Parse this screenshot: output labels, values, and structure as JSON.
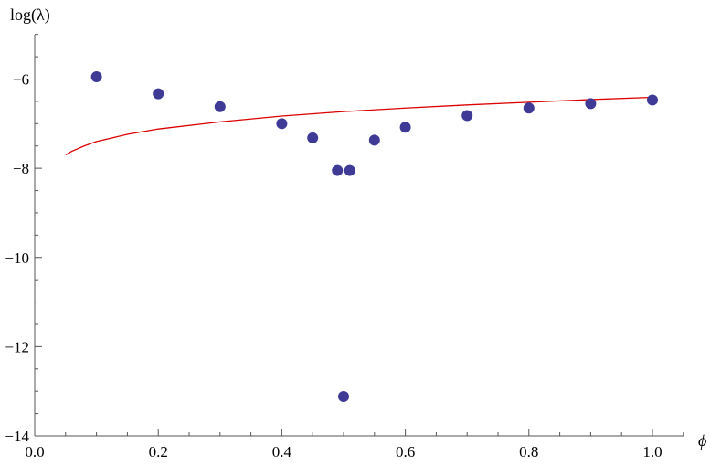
{
  "chart_data": {
    "type": "scatter",
    "title": "",
    "xlabel": "ϕ",
    "ylabel": "log(λ)",
    "xlim": [
      0.0,
      1.05
    ],
    "ylim": [
      -14,
      -5.0
    ],
    "grid": false,
    "x_ticks": [
      {
        "value": 0.0,
        "label": "0.0"
      },
      {
        "value": 0.2,
        "label": "0.2"
      },
      {
        "value": 0.4,
        "label": "0.4"
      },
      {
        "value": 0.6,
        "label": "0.6"
      },
      {
        "value": 0.8,
        "label": "0.8"
      },
      {
        "value": 1.0,
        "label": "1.0"
      }
    ],
    "y_ticks": [
      {
        "value": -6,
        "label": "−6"
      },
      {
        "value": -8,
        "label": "−8"
      },
      {
        "value": -10,
        "label": "−10"
      },
      {
        "value": -12,
        "label": "−12"
      },
      {
        "value": -14,
        "label": "−14"
      }
    ],
    "series": [
      {
        "type": "scatter",
        "color": "#3e3a96",
        "points": [
          {
            "x": 0.1,
            "y": -5.95
          },
          {
            "x": 0.2,
            "y": -6.33
          },
          {
            "x": 0.3,
            "y": -6.62
          },
          {
            "x": 0.4,
            "y": -7.0
          },
          {
            "x": 0.45,
            "y": -7.32
          },
          {
            "x": 0.49,
            "y": -8.05
          },
          {
            "x": 0.5,
            "y": -13.12
          },
          {
            "x": 0.51,
            "y": -8.05
          },
          {
            "x": 0.55,
            "y": -7.37
          },
          {
            "x": 0.6,
            "y": -7.08
          },
          {
            "x": 0.7,
            "y": -6.82
          },
          {
            "x": 0.8,
            "y": -6.65
          },
          {
            "x": 0.9,
            "y": -6.55
          },
          {
            "x": 1.0,
            "y": -6.47
          }
        ]
      },
      {
        "type": "line",
        "color": "#dd0000",
        "points": [
          {
            "x": 0.05,
            "y": -7.7
          },
          {
            "x": 0.06,
            "y": -7.62
          },
          {
            "x": 0.08,
            "y": -7.5
          },
          {
            "x": 0.1,
            "y": -7.4
          },
          {
            "x": 0.15,
            "y": -7.24
          },
          {
            "x": 0.2,
            "y": -7.12
          },
          {
            "x": 0.3,
            "y": -6.96
          },
          {
            "x": 0.4,
            "y": -6.83
          },
          {
            "x": 0.5,
            "y": -6.73
          },
          {
            "x": 0.6,
            "y": -6.65
          },
          {
            "x": 0.7,
            "y": -6.58
          },
          {
            "x": 0.8,
            "y": -6.52
          },
          {
            "x": 0.9,
            "y": -6.46
          },
          {
            "x": 1.0,
            "y": -6.41
          }
        ]
      }
    ]
  }
}
